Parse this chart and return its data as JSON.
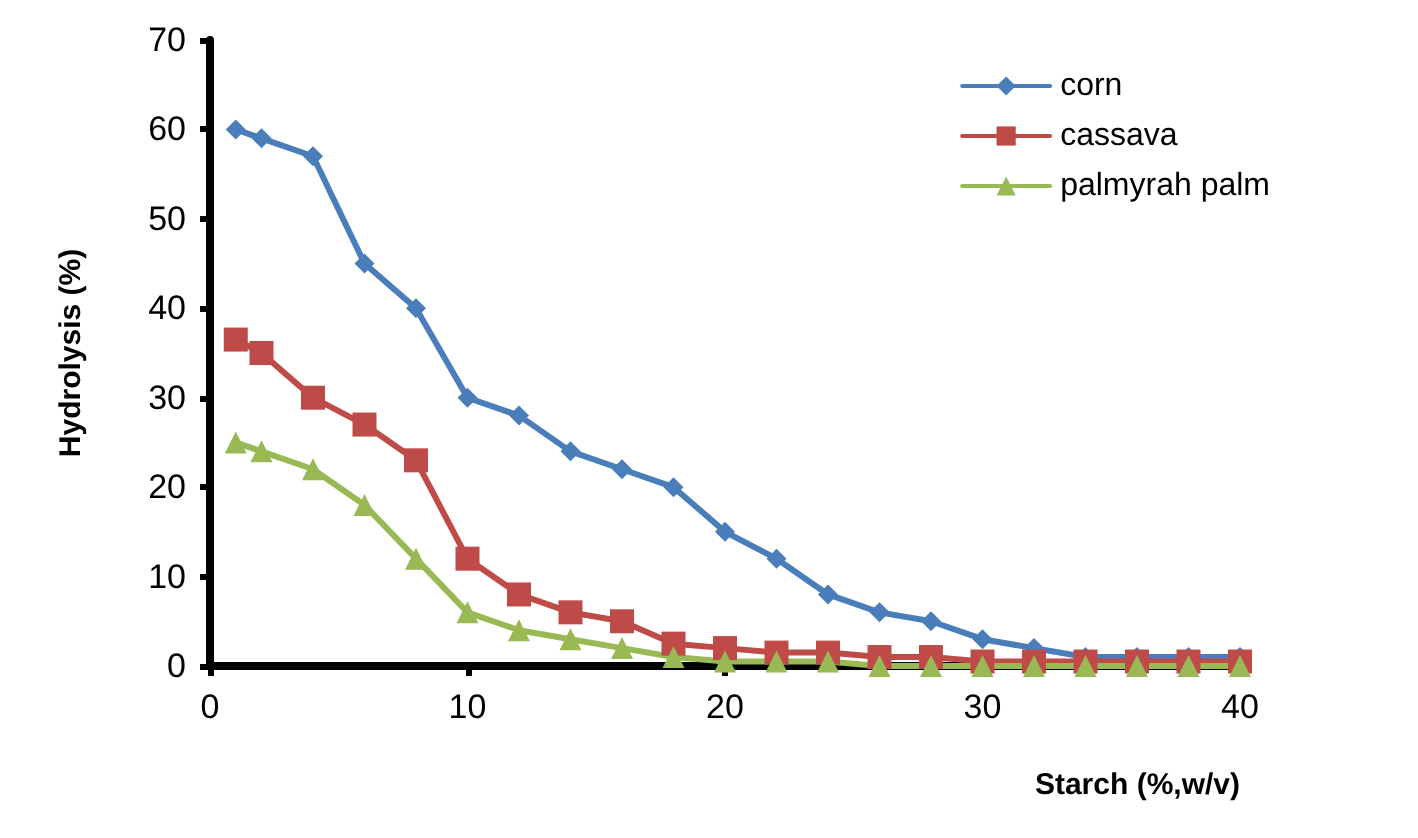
{
  "chart_data": {
    "type": "line",
    "xlabel": "Starch (%,w/v)",
    "ylabel": "Hydrolysis (%)",
    "x": [
      1,
      2,
      4,
      6,
      8,
      10,
      12,
      14,
      16,
      18,
      20,
      22,
      24,
      26,
      28,
      30,
      32,
      34,
      36,
      38,
      40
    ],
    "series": [
      {
        "name": "corn",
        "color": "#4a7ebb",
        "marker": "diamond",
        "values": [
          60,
          59,
          57,
          45,
          40,
          30,
          28,
          24,
          22,
          20,
          15,
          12,
          8,
          6,
          5,
          3,
          2,
          1,
          1,
          1,
          1
        ]
      },
      {
        "name": "cassava",
        "color": "#be4b48",
        "marker": "square",
        "values": [
          36.5,
          35,
          30,
          27,
          23,
          12,
          8,
          6,
          5,
          2.5,
          2,
          1.5,
          1.5,
          1,
          1,
          0.5,
          0.5,
          0.5,
          0.5,
          0.5,
          0.5
        ]
      },
      {
        "name": "palmyrah palm",
        "color": "#98b954",
        "marker": "triangle",
        "values": [
          25,
          24,
          22,
          18,
          12,
          6,
          4,
          3,
          2,
          1,
          0.5,
          0.5,
          0.5,
          0,
          0,
          0,
          0,
          0,
          0,
          0,
          0
        ]
      }
    ],
    "xlim": [
      0,
      40
    ],
    "xticks": [
      0,
      10,
      20,
      30,
      40
    ],
    "ylim": [
      0,
      70
    ],
    "yticks": [
      0,
      10,
      20,
      30,
      40,
      50,
      60,
      70
    ],
    "grid": false,
    "legend": "top right",
    "line_style": "solid"
  }
}
